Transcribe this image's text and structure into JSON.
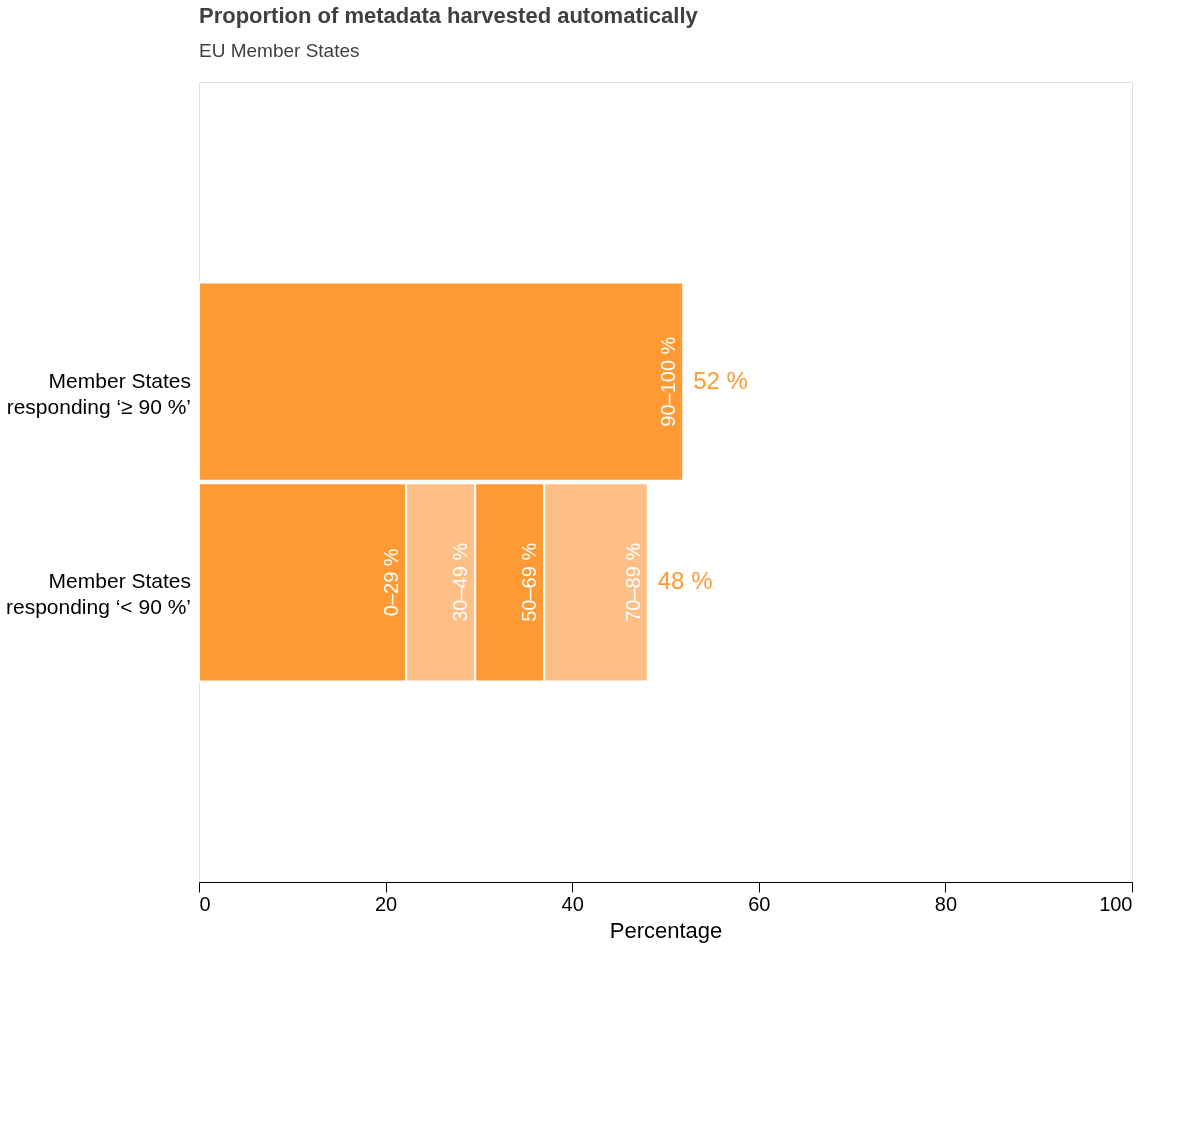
{
  "chart_data": {
    "type": "bar",
    "orientation": "horizontal",
    "stacked": true,
    "title": "Proportion of metadata harvested automatically",
    "subtitle": "EU Member States",
    "xlabel": "Percentage",
    "xlim": [
      0,
      100
    ],
    "xticks": [
      0,
      20,
      40,
      60,
      80,
      100
    ],
    "grid": false,
    "legend": false,
    "categories": [
      "Member States responding ‘≥ 90 %’",
      "Member States responding ‘< 90 %’"
    ],
    "series": [
      {
        "name": "90–100 %",
        "color": "#ff9933",
        "values": [
          51.9,
          null
        ]
      },
      {
        "name": "0–29 %",
        "color": "#ff9933",
        "values": [
          null,
          22.2
        ]
      },
      {
        "name": "30–49 %",
        "color": "#fdbf85",
        "values": [
          null,
          7.4
        ]
      },
      {
        "name": "50–69 %",
        "color": "#ff9933",
        "values": [
          null,
          7.4
        ]
      },
      {
        "name": "70–89 %",
        "color": "#fdbf85",
        "values": [
          null,
          11.1
        ]
      }
    ],
    "totals": [
      "52 %",
      "48 %"
    ]
  }
}
